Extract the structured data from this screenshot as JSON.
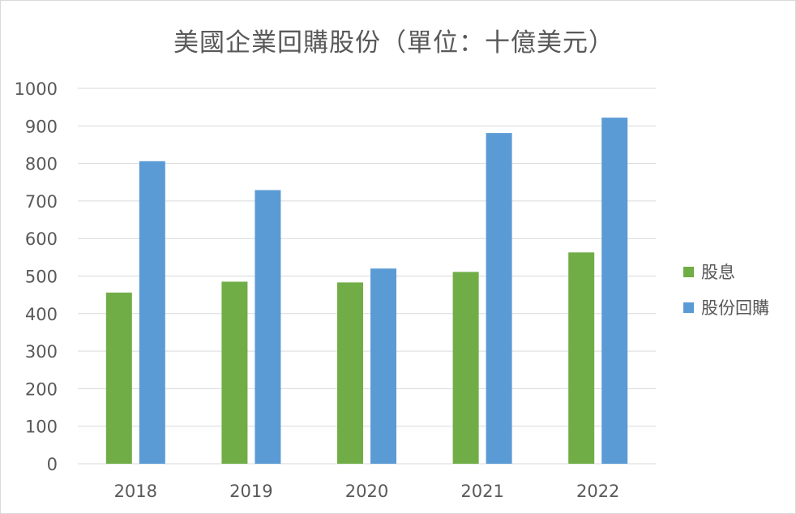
{
  "chart_data": {
    "type": "bar",
    "title": "美國企業回購股份（單位：十億美元）",
    "categories": [
      "2018",
      "2019",
      "2020",
      "2021",
      "2022"
    ],
    "series": [
      {
        "name": "股息",
        "values": [
          456,
          485,
          483,
          511,
          563
        ],
        "color": "#70ad47"
      },
      {
        "name": "股份回購",
        "values": [
          806,
          729,
          520,
          881,
          922
        ],
        "color": "#5b9bd5"
      }
    ],
    "y_ticks": [
      "0",
      "100",
      "200",
      "300",
      "400",
      "500",
      "600",
      "700",
      "800",
      "900",
      "1000"
    ],
    "ylim": [
      0,
      1000
    ],
    "grid": true,
    "legend_position": "right"
  }
}
